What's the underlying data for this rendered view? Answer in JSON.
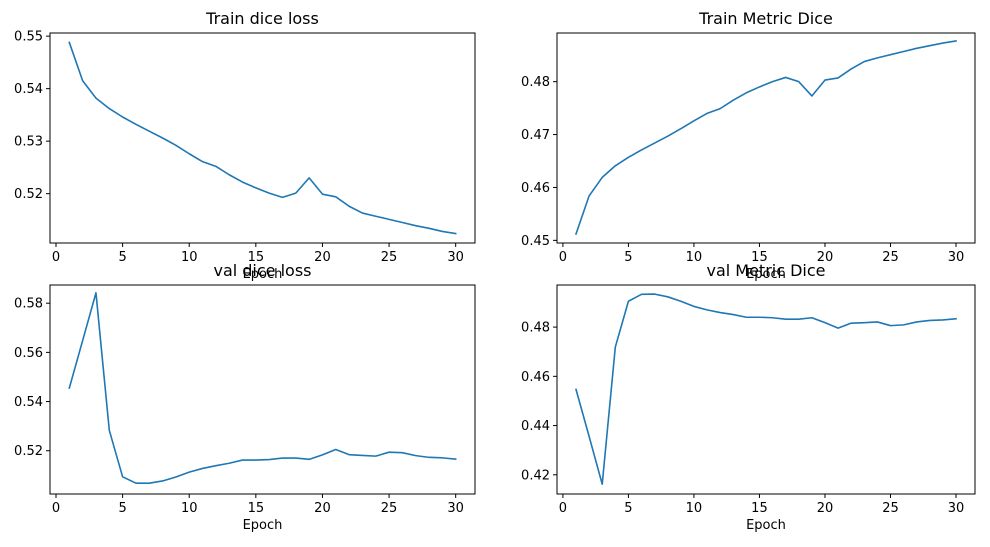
{
  "chart_data": [
    {
      "type": "line",
      "title": "Train dice loss",
      "xlabel": "Epoch",
      "ylabel": "",
      "xlim": [
        -0.45,
        31.45
      ],
      "ylim": [
        0.5106,
        0.5506
      ],
      "xticks": [
        0,
        5,
        10,
        15,
        20,
        25,
        30
      ],
      "yticks": [
        0.52,
        0.53,
        0.54,
        0.55
      ],
      "ytick_labels": [
        "0.52",
        "0.53",
        "0.54",
        "0.55"
      ],
      "grid": false,
      "color": "#1f77b4",
      "series": [
        {
          "x": [
            1,
            2,
            3,
            4,
            5,
            6,
            7,
            8,
            9,
            10,
            11,
            12,
            13,
            14,
            15,
            16,
            17,
            18,
            19,
            20,
            21,
            22,
            23,
            24,
            25,
            26,
            27,
            28,
            29,
            30
          ],
          "values": [
            0.5488,
            0.5415,
            0.5382,
            0.5362,
            0.5346,
            0.5332,
            0.5319,
            0.5306,
            0.5292,
            0.5276,
            0.5261,
            0.5252,
            0.5236,
            0.5222,
            0.5211,
            0.5201,
            0.5193,
            0.5201,
            0.523,
            0.5199,
            0.5194,
            0.5176,
            0.5163,
            0.5157,
            0.5151,
            0.5145,
            0.5139,
            0.5134,
            0.5128,
            0.5124
          ]
        }
      ]
    },
    {
      "type": "line",
      "title": "Train Metric Dice",
      "xlabel": "Epoch",
      "ylabel": "",
      "xlim": [
        -0.45,
        31.45
      ],
      "ylim": [
        0.4495,
        0.4892
      ],
      "xticks": [
        0,
        5,
        10,
        15,
        20,
        25,
        30
      ],
      "yticks": [
        0.45,
        0.46,
        0.47,
        0.48
      ],
      "ytick_labels": [
        "0.45",
        "0.46",
        "0.47",
        "0.48"
      ],
      "grid": false,
      "color": "#1f77b4",
      "series": [
        {
          "x": [
            1,
            2,
            3,
            4,
            5,
            6,
            7,
            8,
            9,
            10,
            11,
            12,
            13,
            14,
            15,
            16,
            17,
            18,
            19,
            20,
            21,
            22,
            23,
            24,
            25,
            26,
            27,
            28,
            29,
            30
          ],
          "values": [
            0.4512,
            0.4584,
            0.4619,
            0.4641,
            0.4657,
            0.4671,
            0.4684,
            0.4697,
            0.4711,
            0.4726,
            0.474,
            0.4749,
            0.4765,
            0.4779,
            0.479,
            0.48,
            0.4808,
            0.48,
            0.4773,
            0.4803,
            0.4807,
            0.4824,
            0.4838,
            0.4845,
            0.4851,
            0.4857,
            0.4863,
            0.4868,
            0.4873,
            0.4877
          ]
        }
      ]
    },
    {
      "type": "line",
      "title": "val dice loss",
      "xlabel": "Epoch",
      "ylabel": "",
      "xlim": [
        -0.45,
        31.45
      ],
      "ylim": [
        0.5024,
        0.5874
      ],
      "xticks": [
        0,
        5,
        10,
        15,
        20,
        25,
        30
      ],
      "yticks": [
        0.52,
        0.54,
        0.56,
        0.58
      ],
      "ytick_labels": [
        "0.52",
        "0.54",
        "0.56",
        "0.58"
      ],
      "grid": false,
      "color": "#1f77b4",
      "series": [
        {
          "x": [
            1,
            2,
            3,
            4,
            5,
            6,
            7,
            8,
            9,
            10,
            11,
            12,
            13,
            14,
            15,
            16,
            17,
            18,
            19,
            20,
            21,
            22,
            23,
            24,
            25,
            26,
            27,
            28,
            29,
            30
          ],
          "values": [
            0.5455,
            0.5648,
            0.5842,
            0.5283,
            0.5094,
            0.5068,
            0.5068,
            0.5077,
            0.5093,
            0.5113,
            0.5128,
            0.5139,
            0.5149,
            0.5162,
            0.5162,
            0.5164,
            0.517,
            0.517,
            0.5165,
            0.5183,
            0.5205,
            0.5184,
            0.5181,
            0.5178,
            0.5194,
            0.5192,
            0.518,
            0.5173,
            0.5171,
            0.5166
          ]
        }
      ]
    },
    {
      "type": "line",
      "title": "val Metric Dice",
      "xlabel": "Epoch",
      "ylabel": "",
      "xlim": [
        -0.45,
        31.45
      ],
      "ylim": [
        0.4122,
        0.4971
      ],
      "xticks": [
        0,
        5,
        10,
        15,
        20,
        25,
        30
      ],
      "yticks": [
        0.42,
        0.44,
        0.46,
        0.48
      ],
      "ytick_labels": [
        "0.42",
        "0.44",
        "0.46",
        "0.48"
      ],
      "grid": false,
      "color": "#1f77b4",
      "series": [
        {
          "x": [
            1,
            2,
            3,
            4,
            5,
            6,
            7,
            8,
            9,
            10,
            11,
            12,
            13,
            14,
            15,
            16,
            17,
            18,
            19,
            20,
            21,
            22,
            23,
            24,
            25,
            26,
            27,
            28,
            29,
            30
          ],
          "values": [
            0.4547,
            0.4356,
            0.4162,
            0.4719,
            0.4905,
            0.4933,
            0.4934,
            0.4923,
            0.4905,
            0.4884,
            0.487,
            0.4859,
            0.4851,
            0.484,
            0.484,
            0.4838,
            0.4832,
            0.4832,
            0.4838,
            0.4818,
            0.4796,
            0.4816,
            0.4818,
            0.4821,
            0.4806,
            0.4809,
            0.4821,
            0.4827,
            0.4829,
            0.4834
          ]
        }
      ]
    }
  ]
}
